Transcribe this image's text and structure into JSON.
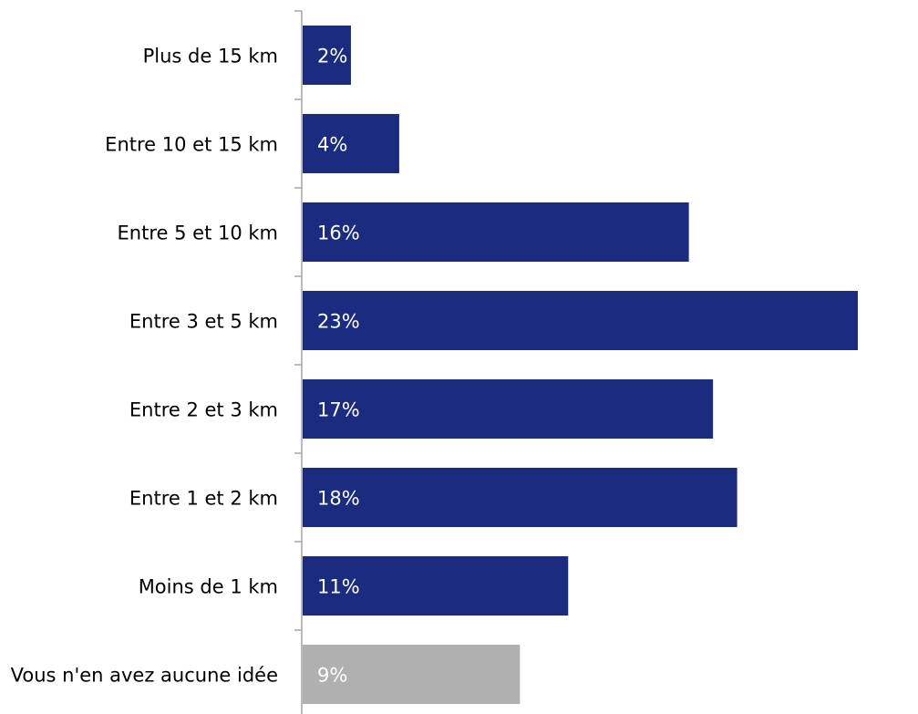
{
  "chart_data": {
    "type": "bar",
    "orientation": "horizontal",
    "categories": [
      "Plus de 15 km",
      "Entre 10 et 15 km",
      "Entre 5 et 10 km",
      "Entre 3 et 5 km",
      "Entre 2 et 3 km",
      "Entre 1 et 2 km",
      "Moins de 1 km",
      "Vous n'en avez aucune idée"
    ],
    "values": [
      2,
      4,
      16,
      23,
      17,
      18,
      11,
      9
    ],
    "value_labels": [
      "2%",
      "4%",
      "16%",
      "23%",
      "17%",
      "18%",
      "11%",
      "9%"
    ],
    "unit": "%",
    "xlim": [
      0,
      23
    ],
    "grid": false,
    "colors": {
      "primary": "#1a2b80",
      "secondary": "#b0b0b0",
      "axis": "#a6a6a6"
    },
    "bar_colors": [
      "#1a2b80",
      "#1a2b80",
      "#1a2b80",
      "#1a2b80",
      "#1a2b80",
      "#1a2b80",
      "#1a2b80",
      "#b0b0b0"
    ]
  }
}
